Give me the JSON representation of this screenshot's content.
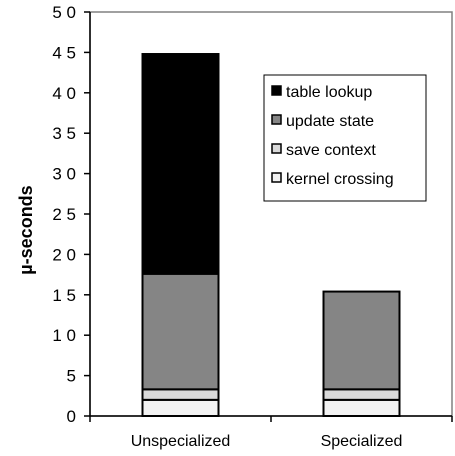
{
  "chart_data": {
    "type": "bar",
    "stacked": true,
    "categories": [
      "Unspecialized",
      "Specialized"
    ],
    "series": [
      {
        "name": "kernel crossing",
        "values": [
          2,
          2
        ],
        "color": "#f2f2f2"
      },
      {
        "name": "save context",
        "values": [
          1.3,
          1.3
        ],
        "color": "#d9d9d9"
      },
      {
        "name": "update state",
        "values": [
          14.3,
          12.1
        ],
        "color": "#858585"
      },
      {
        "name": "table lookup",
        "values": [
          27.2,
          0
        ],
        "color": "#000000"
      }
    ],
    "legend_order": [
      "table lookup",
      "update state",
      "save context",
      "kernel crossing"
    ],
    "legend_position": "top-right",
    "title": "",
    "xlabel": "",
    "ylabel": "µ-seconds",
    "ylim": [
      0,
      50
    ],
    "yticks": [
      "0",
      "5",
      "1 0",
      "1 5",
      "2 0",
      "2 5",
      "3 0",
      "3 5",
      "4 0",
      "4 5",
      "5 0"
    ],
    "ytick_values": [
      0,
      5,
      10,
      15,
      20,
      25,
      30,
      35,
      40,
      45,
      50
    ],
    "grid": false
  }
}
